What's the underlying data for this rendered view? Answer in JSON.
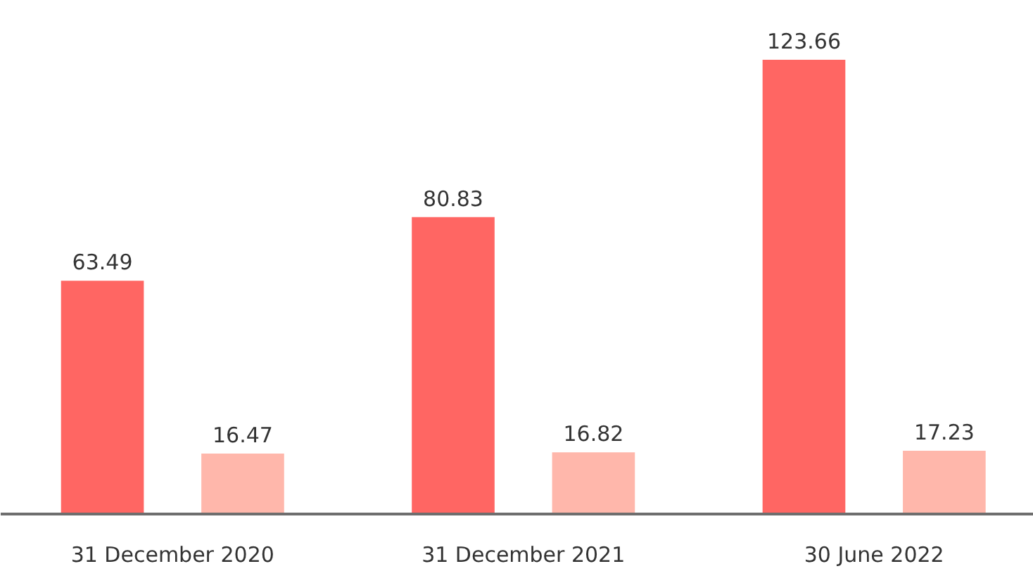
{
  "chart_data": {
    "type": "bar",
    "categories": [
      "31 December 2020",
      "31 December 2021",
      "30 June 2022"
    ],
    "series": [
      {
        "color": "#ff6663",
        "values": [
          63.49,
          80.83,
          123.66
        ]
      },
      {
        "color": "#ffb7ab",
        "values": [
          16.47,
          16.82,
          17.23
        ]
      }
    ],
    "data_labels": true,
    "tick_labels": "x"
  }
}
